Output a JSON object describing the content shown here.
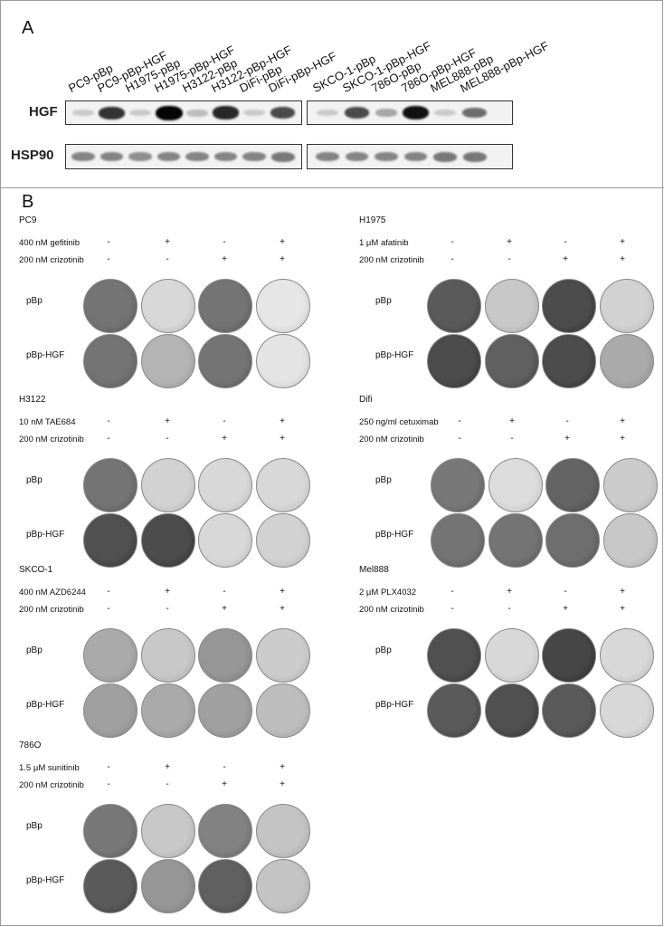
{
  "panel_a": {
    "letter": "A",
    "lanes_left": [
      "PC9-pBp",
      "PC9-pBp-HGF",
      "H1975-pBp",
      "H1975-pBp-HGF",
      "H3122-pBp",
      "H3122-pBp-HGF",
      "DiFi-pBp",
      "DiFi-pBp-HGF"
    ],
    "lanes_right": [
      "SKCO-1-pBp",
      "SKCO-1-pBp-HGF",
      "786O-pBp",
      "786O-pBp-HGF",
      "MEL888-pBp",
      "MEL888-pBp-HGF"
    ],
    "blots": [
      {
        "label": "HGF",
        "intensity_left": [
          0.15,
          0.8,
          0.15,
          1.0,
          0.2,
          0.85,
          0.15,
          0.7
        ],
        "intensity_right": [
          0.15,
          0.7,
          0.3,
          0.95,
          0.15,
          0.55
        ]
      },
      {
        "label": "HSP90",
        "intensity_left": [
          0.45,
          0.45,
          0.4,
          0.45,
          0.45,
          0.45,
          0.45,
          0.5
        ],
        "intensity_right": [
          0.45,
          0.45,
          0.45,
          0.45,
          0.5,
          0.5
        ]
      }
    ]
  },
  "panel_b": {
    "letter": "B",
    "row_labels": [
      "pBp",
      "pBp-HGF"
    ],
    "experiments": [
      {
        "title": "PC9",
        "drug1": "400 nM gefitinib",
        "drug2": "200 nM crizotinib",
        "signs1": [
          "-",
          "+",
          "-",
          "+"
        ],
        "signs2": [
          "-",
          "-",
          "+",
          "+"
        ],
        "density": [
          [
            0.62,
            0.12,
            0.62,
            0.05
          ],
          [
            0.62,
            0.3,
            0.62,
            0.06
          ]
        ]
      },
      {
        "title": "H1975",
        "drug1": "1 µM afatinib",
        "drug2": "200 nM crizotinib",
        "signs1": [
          "-",
          "+",
          "-",
          "+"
        ],
        "signs2": [
          "-",
          "-",
          "+",
          "+"
        ],
        "density": [
          [
            0.75,
            0.2,
            0.82,
            0.15
          ],
          [
            0.82,
            0.72,
            0.82,
            0.35
          ]
        ]
      },
      {
        "title": "H3122",
        "drug1": "10 nM TAE684",
        "drug2": "200 nM crizotinib",
        "signs1": [
          "-",
          "+",
          "-",
          "+"
        ],
        "signs2": [
          "-",
          "-",
          "+",
          "+"
        ],
        "density": [
          [
            0.62,
            0.15,
            0.12,
            0.12
          ],
          [
            0.8,
            0.82,
            0.12,
            0.15
          ]
        ]
      },
      {
        "title": "Difi",
        "drug1": "250 ng/ml cetuximab",
        "drug2": "200 nM crizotinib",
        "signs1": [
          "-",
          "+",
          "-",
          "+"
        ],
        "signs2": [
          "-",
          "-",
          "+",
          "+"
        ],
        "density": [
          [
            0.6,
            0.1,
            0.7,
            0.18
          ],
          [
            0.62,
            0.62,
            0.65,
            0.2
          ]
        ]
      },
      {
        "title": "SKCO-1",
        "drug1": "400 nM AZD6244",
        "drug2": "200 nM crizotinib",
        "signs1": [
          "-",
          "+",
          "-",
          "+"
        ],
        "signs2": [
          "-",
          "-",
          "+",
          "+"
        ],
        "density": [
          [
            0.35,
            0.2,
            0.45,
            0.18
          ],
          [
            0.4,
            0.35,
            0.4,
            0.25
          ]
        ]
      },
      {
        "title": "Mel888",
        "drug1": "2 µM PLX4032",
        "drug2": "200 nM crizotinib",
        "signs1": [
          "-",
          "+",
          "-",
          "+"
        ],
        "signs2": [
          "-",
          "-",
          "+",
          "+"
        ],
        "density": [
          [
            0.8,
            0.12,
            0.85,
            0.12
          ],
          [
            0.75,
            0.8,
            0.75,
            0.12
          ]
        ]
      },
      {
        "title": "786O",
        "drug1": "1.5 µM sunitinib",
        "drug2": "200 nM crizotinib",
        "signs1": [
          "-",
          "+",
          "-",
          "+"
        ],
        "signs2": [
          "-",
          "-",
          "+",
          "+"
        ],
        "density": [
          [
            0.6,
            0.2,
            0.55,
            0.22
          ],
          [
            0.75,
            0.45,
            0.72,
            0.22
          ]
        ]
      }
    ]
  }
}
